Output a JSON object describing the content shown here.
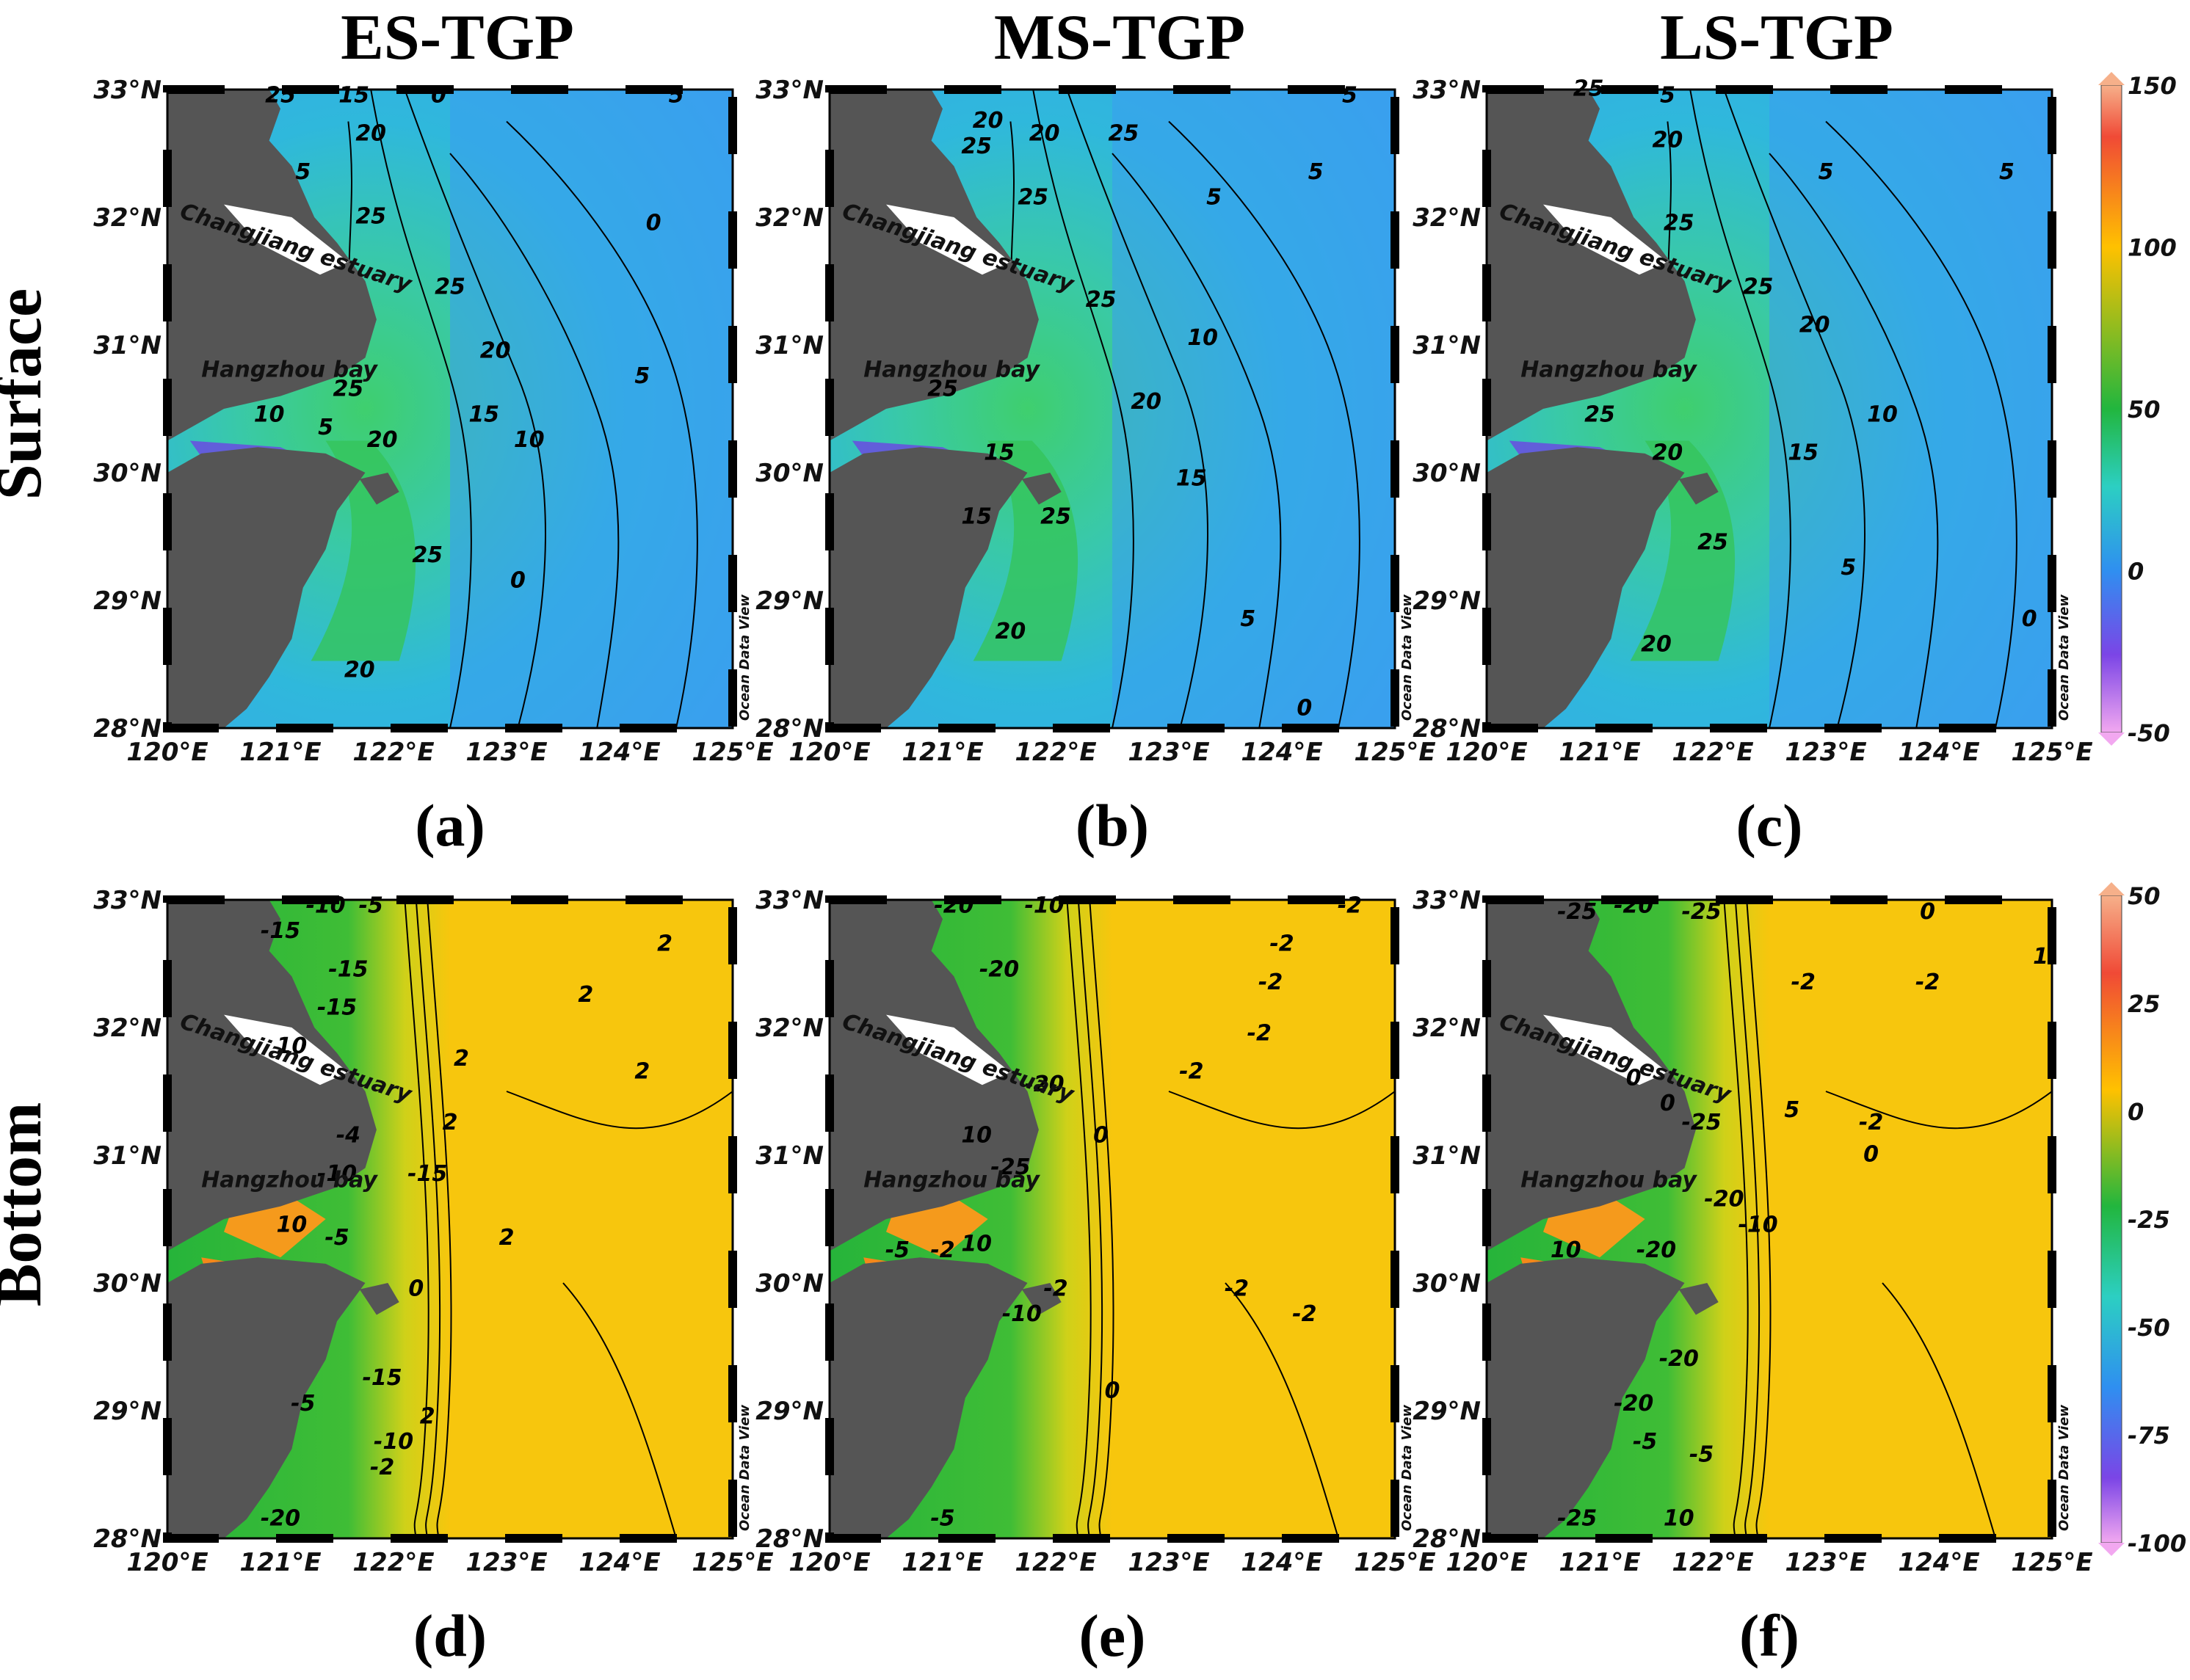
{
  "columns": [
    "ES-TGP",
    "MS-TGP",
    "LS-TGP"
  ],
  "rows": [
    "Surface",
    "Bottom"
  ],
  "axes": {
    "lon_ticks": [
      "120°E",
      "121°E",
      "122°E",
      "123°E",
      "124°E",
      "125°E"
    ],
    "lat_ticks": [
      "28°N",
      "29°N",
      "30°N",
      "31°N",
      "32°N",
      "33°N"
    ],
    "lon_range": [
      120,
      125
    ],
    "lat_range": [
      28,
      33
    ]
  },
  "places": {
    "estuary": "Changjiang estuary",
    "bay": "Hangzhou bay"
  },
  "watermark": "Ocean Data View",
  "panels": [
    {
      "label": "(a)",
      "row": "Surface",
      "column": "ES-TGP",
      "contours": [
        {
          "lon": 122.4,
          "lat": 32.9,
          "text": "0"
        },
        {
          "lon": 124.5,
          "lat": 32.9,
          "text": "5"
        },
        {
          "lon": 121.0,
          "lat": 32.9,
          "text": "25"
        },
        {
          "lon": 121.65,
          "lat": 32.9,
          "text": "15"
        },
        {
          "lon": 121.8,
          "lat": 32.6,
          "text": "20"
        },
        {
          "lon": 121.2,
          "lat": 32.3,
          "text": "5"
        },
        {
          "lon": 121.8,
          "lat": 31.95,
          "text": "25"
        },
        {
          "lon": 124.3,
          "lat": 31.9,
          "text": "0"
        },
        {
          "lon": 122.5,
          "lat": 31.4,
          "text": "25"
        },
        {
          "lon": 122.9,
          "lat": 30.9,
          "text": "20"
        },
        {
          "lon": 124.2,
          "lat": 30.7,
          "text": "5"
        },
        {
          "lon": 122.8,
          "lat": 30.4,
          "text": "15"
        },
        {
          "lon": 123.2,
          "lat": 30.2,
          "text": "10"
        },
        {
          "lon": 121.6,
          "lat": 30.6,
          "text": "25"
        },
        {
          "lon": 120.9,
          "lat": 30.4,
          "text": "10"
        },
        {
          "lon": 121.4,
          "lat": 30.3,
          "text": "5"
        },
        {
          "lon": 121.9,
          "lat": 30.2,
          "text": "20"
        },
        {
          "lon": 122.3,
          "lat": 29.3,
          "text": "25"
        },
        {
          "lon": 123.1,
          "lat": 29.1,
          "text": "0"
        },
        {
          "lon": 121.7,
          "lat": 28.4,
          "text": "20"
        }
      ]
    },
    {
      "label": "(b)",
      "row": "Surface",
      "column": "MS-TGP",
      "contours": [
        {
          "lon": 122.6,
          "lat": 32.6,
          "text": "25"
        },
        {
          "lon": 124.6,
          "lat": 32.9,
          "text": "5"
        },
        {
          "lon": 121.4,
          "lat": 32.7,
          "text": "20"
        },
        {
          "lon": 121.9,
          "lat": 32.6,
          "text": "20"
        },
        {
          "lon": 121.3,
          "lat": 32.5,
          "text": "25"
        },
        {
          "lon": 121.8,
          "lat": 32.1,
          "text": "25"
        },
        {
          "lon": 124.3,
          "lat": 32.3,
          "text": "5"
        },
        {
          "lon": 123.4,
          "lat": 32.1,
          "text": "5"
        },
        {
          "lon": 122.4,
          "lat": 31.3,
          "text": "25"
        },
        {
          "lon": 123.3,
          "lat": 31.0,
          "text": "10"
        },
        {
          "lon": 122.8,
          "lat": 30.5,
          "text": "20"
        },
        {
          "lon": 123.2,
          "lat": 29.9,
          "text": "15"
        },
        {
          "lon": 121.0,
          "lat": 30.6,
          "text": "25"
        },
        {
          "lon": 121.5,
          "lat": 30.1,
          "text": "15"
        },
        {
          "lon": 122.0,
          "lat": 29.6,
          "text": "25"
        },
        {
          "lon": 121.3,
          "lat": 29.6,
          "text": "15"
        },
        {
          "lon": 121.6,
          "lat": 28.7,
          "text": "20"
        },
        {
          "lon": 123.7,
          "lat": 28.8,
          "text": "5"
        },
        {
          "lon": 124.2,
          "lat": 28.1,
          "text": "0"
        }
      ]
    },
    {
      "label": "(c)",
      "row": "Surface",
      "column": "LS-TGP",
      "contours": [
        {
          "lon": 120.9,
          "lat": 32.95,
          "text": "25"
        },
        {
          "lon": 121.6,
          "lat": 32.9,
          "text": "5"
        },
        {
          "lon": 121.6,
          "lat": 32.55,
          "text": "20"
        },
        {
          "lon": 123.0,
          "lat": 32.3,
          "text": "5"
        },
        {
          "lon": 124.6,
          "lat": 32.3,
          "text": "5"
        },
        {
          "lon": 121.7,
          "lat": 31.9,
          "text": "25"
        },
        {
          "lon": 122.4,
          "lat": 31.4,
          "text": "25"
        },
        {
          "lon": 122.9,
          "lat": 31.1,
          "text": "20"
        },
        {
          "lon": 123.5,
          "lat": 30.4,
          "text": "10"
        },
        {
          "lon": 122.8,
          "lat": 30.1,
          "text": "15"
        },
        {
          "lon": 121.0,
          "lat": 30.4,
          "text": "25"
        },
        {
          "lon": 121.6,
          "lat": 30.1,
          "text": "20"
        },
        {
          "lon": 122.0,
          "lat": 29.4,
          "text": "25"
        },
        {
          "lon": 123.2,
          "lat": 29.2,
          "text": "5"
        },
        {
          "lon": 124.8,
          "lat": 28.8,
          "text": "0"
        },
        {
          "lon": 121.5,
          "lat": 28.6,
          "text": "20"
        }
      ]
    },
    {
      "label": "(d)",
      "row": "Bottom",
      "column": "ES-TGP",
      "contours": [
        {
          "lon": 121.0,
          "lat": 32.7,
          "text": "-15"
        },
        {
          "lon": 121.4,
          "lat": 32.9,
          "text": "-10"
        },
        {
          "lon": 121.8,
          "lat": 32.9,
          "text": "-5"
        },
        {
          "lon": 121.6,
          "lat": 32.4,
          "text": "-15"
        },
        {
          "lon": 121.5,
          "lat": 32.1,
          "text": "-15"
        },
        {
          "lon": 124.4,
          "lat": 32.6,
          "text": "2"
        },
        {
          "lon": 123.7,
          "lat": 32.2,
          "text": "2"
        },
        {
          "lon": 124.2,
          "lat": 31.6,
          "text": "2"
        },
        {
          "lon": 122.6,
          "lat": 31.7,
          "text": "2"
        },
        {
          "lon": 122.5,
          "lat": 31.2,
          "text": "2"
        },
        {
          "lon": 121.1,
          "lat": 31.8,
          "text": "10"
        },
        {
          "lon": 121.6,
          "lat": 31.1,
          "text": "-4"
        },
        {
          "lon": 121.5,
          "lat": 30.8,
          "text": "-10"
        },
        {
          "lon": 122.3,
          "lat": 30.8,
          "text": "-15"
        },
        {
          "lon": 121.1,
          "lat": 30.4,
          "text": "10"
        },
        {
          "lon": 121.5,
          "lat": 30.3,
          "text": "-5"
        },
        {
          "lon": 122.2,
          "lat": 29.9,
          "text": "0"
        },
        {
          "lon": 123.0,
          "lat": 30.3,
          "text": "2"
        },
        {
          "lon": 121.9,
          "lat": 29.2,
          "text": "-15"
        },
        {
          "lon": 121.2,
          "lat": 29.0,
          "text": "-5"
        },
        {
          "lon": 122.0,
          "lat": 28.7,
          "text": "-10"
        },
        {
          "lon": 121.9,
          "lat": 28.5,
          "text": "-2"
        },
        {
          "lon": 122.3,
          "lat": 28.9,
          "text": "2"
        },
        {
          "lon": 121.0,
          "lat": 28.1,
          "text": "-20"
        }
      ]
    },
    {
      "label": "(e)",
      "row": "Bottom",
      "column": "MS-TGP",
      "contours": [
        {
          "lon": 121.1,
          "lat": 32.9,
          "text": "-20"
        },
        {
          "lon": 121.9,
          "lat": 32.9,
          "text": "-10"
        },
        {
          "lon": 121.5,
          "lat": 32.4,
          "text": "-20"
        },
        {
          "lon": 124.0,
          "lat": 32.6,
          "text": "-2"
        },
        {
          "lon": 124.6,
          "lat": 32.9,
          "text": "-2"
        },
        {
          "lon": 123.9,
          "lat": 32.3,
          "text": "-2"
        },
        {
          "lon": 123.8,
          "lat": 31.9,
          "text": "-2"
        },
        {
          "lon": 123.2,
          "lat": 31.6,
          "text": "-2"
        },
        {
          "lon": 121.9,
          "lat": 31.5,
          "text": "-20"
        },
        {
          "lon": 122.4,
          "lat": 31.1,
          "text": "0"
        },
        {
          "lon": 121.3,
          "lat": 31.1,
          "text": "10"
        },
        {
          "lon": 121.6,
          "lat": 30.85,
          "text": "-25"
        },
        {
          "lon": 120.6,
          "lat": 30.2,
          "text": "-5"
        },
        {
          "lon": 121.0,
          "lat": 30.2,
          "text": "-2"
        },
        {
          "lon": 121.3,
          "lat": 30.25,
          "text": "10"
        },
        {
          "lon": 121.7,
          "lat": 29.7,
          "text": "-10"
        },
        {
          "lon": 122.0,
          "lat": 29.9,
          "text": "-2"
        },
        {
          "lon": 123.6,
          "lat": 29.9,
          "text": "-2"
        },
        {
          "lon": 124.2,
          "lat": 29.7,
          "text": "-2"
        },
        {
          "lon": 122.5,
          "lat": 29.1,
          "text": "0"
        },
        {
          "lon": 121.0,
          "lat": 28.1,
          "text": "-5"
        }
      ]
    },
    {
      "label": "(f)",
      "row": "Bottom",
      "column": "LS-TGP",
      "contours": [
        {
          "lon": 120.8,
          "lat": 32.85,
          "text": "-25"
        },
        {
          "lon": 121.9,
          "lat": 32.85,
          "text": "-25"
        },
        {
          "lon": 121.3,
          "lat": 32.9,
          "text": "-20"
        },
        {
          "lon": 123.9,
          "lat": 32.85,
          "text": "0"
        },
        {
          "lon": 122.8,
          "lat": 32.3,
          "text": "-2"
        },
        {
          "lon": 123.9,
          "lat": 32.3,
          "text": "-2"
        },
        {
          "lon": 124.9,
          "lat": 32.5,
          "text": "1"
        },
        {
          "lon": 121.3,
          "lat": 31.55,
          "text": "0"
        },
        {
          "lon": 121.6,
          "lat": 31.35,
          "text": "0"
        },
        {
          "lon": 121.9,
          "lat": 31.2,
          "text": "-25"
        },
        {
          "lon": 122.7,
          "lat": 31.3,
          "text": "5"
        },
        {
          "lon": 123.4,
          "lat": 31.2,
          "text": "-2"
        },
        {
          "lon": 123.4,
          "lat": 30.95,
          "text": "0"
        },
        {
          "lon": 122.1,
          "lat": 30.6,
          "text": "-20"
        },
        {
          "lon": 122.4,
          "lat": 30.4,
          "text": "-10"
        },
        {
          "lon": 121.5,
          "lat": 30.2,
          "text": "-20"
        },
        {
          "lon": 120.7,
          "lat": 30.2,
          "text": "10"
        },
        {
          "lon": 121.7,
          "lat": 29.35,
          "text": "-20"
        },
        {
          "lon": 121.3,
          "lat": 29.0,
          "text": "-20"
        },
        {
          "lon": 121.4,
          "lat": 28.7,
          "text": "-5"
        },
        {
          "lon": 121.9,
          "lat": 28.6,
          "text": "-5"
        },
        {
          "lon": 120.8,
          "lat": 28.1,
          "text": "-25"
        },
        {
          "lon": 121.7,
          "lat": 28.1,
          "text": "10"
        }
      ]
    }
  ],
  "colorbars": [
    {
      "row": "Surface",
      "ticks": [
        "150",
        "100",
        "50",
        "0",
        "-50"
      ],
      "range": [
        -50,
        150
      ]
    },
    {
      "row": "Bottom",
      "ticks": [
        "50",
        "25",
        "0",
        "-25",
        "-50",
        "-75",
        "-100"
      ],
      "range": [
        -100,
        50
      ]
    }
  ]
}
